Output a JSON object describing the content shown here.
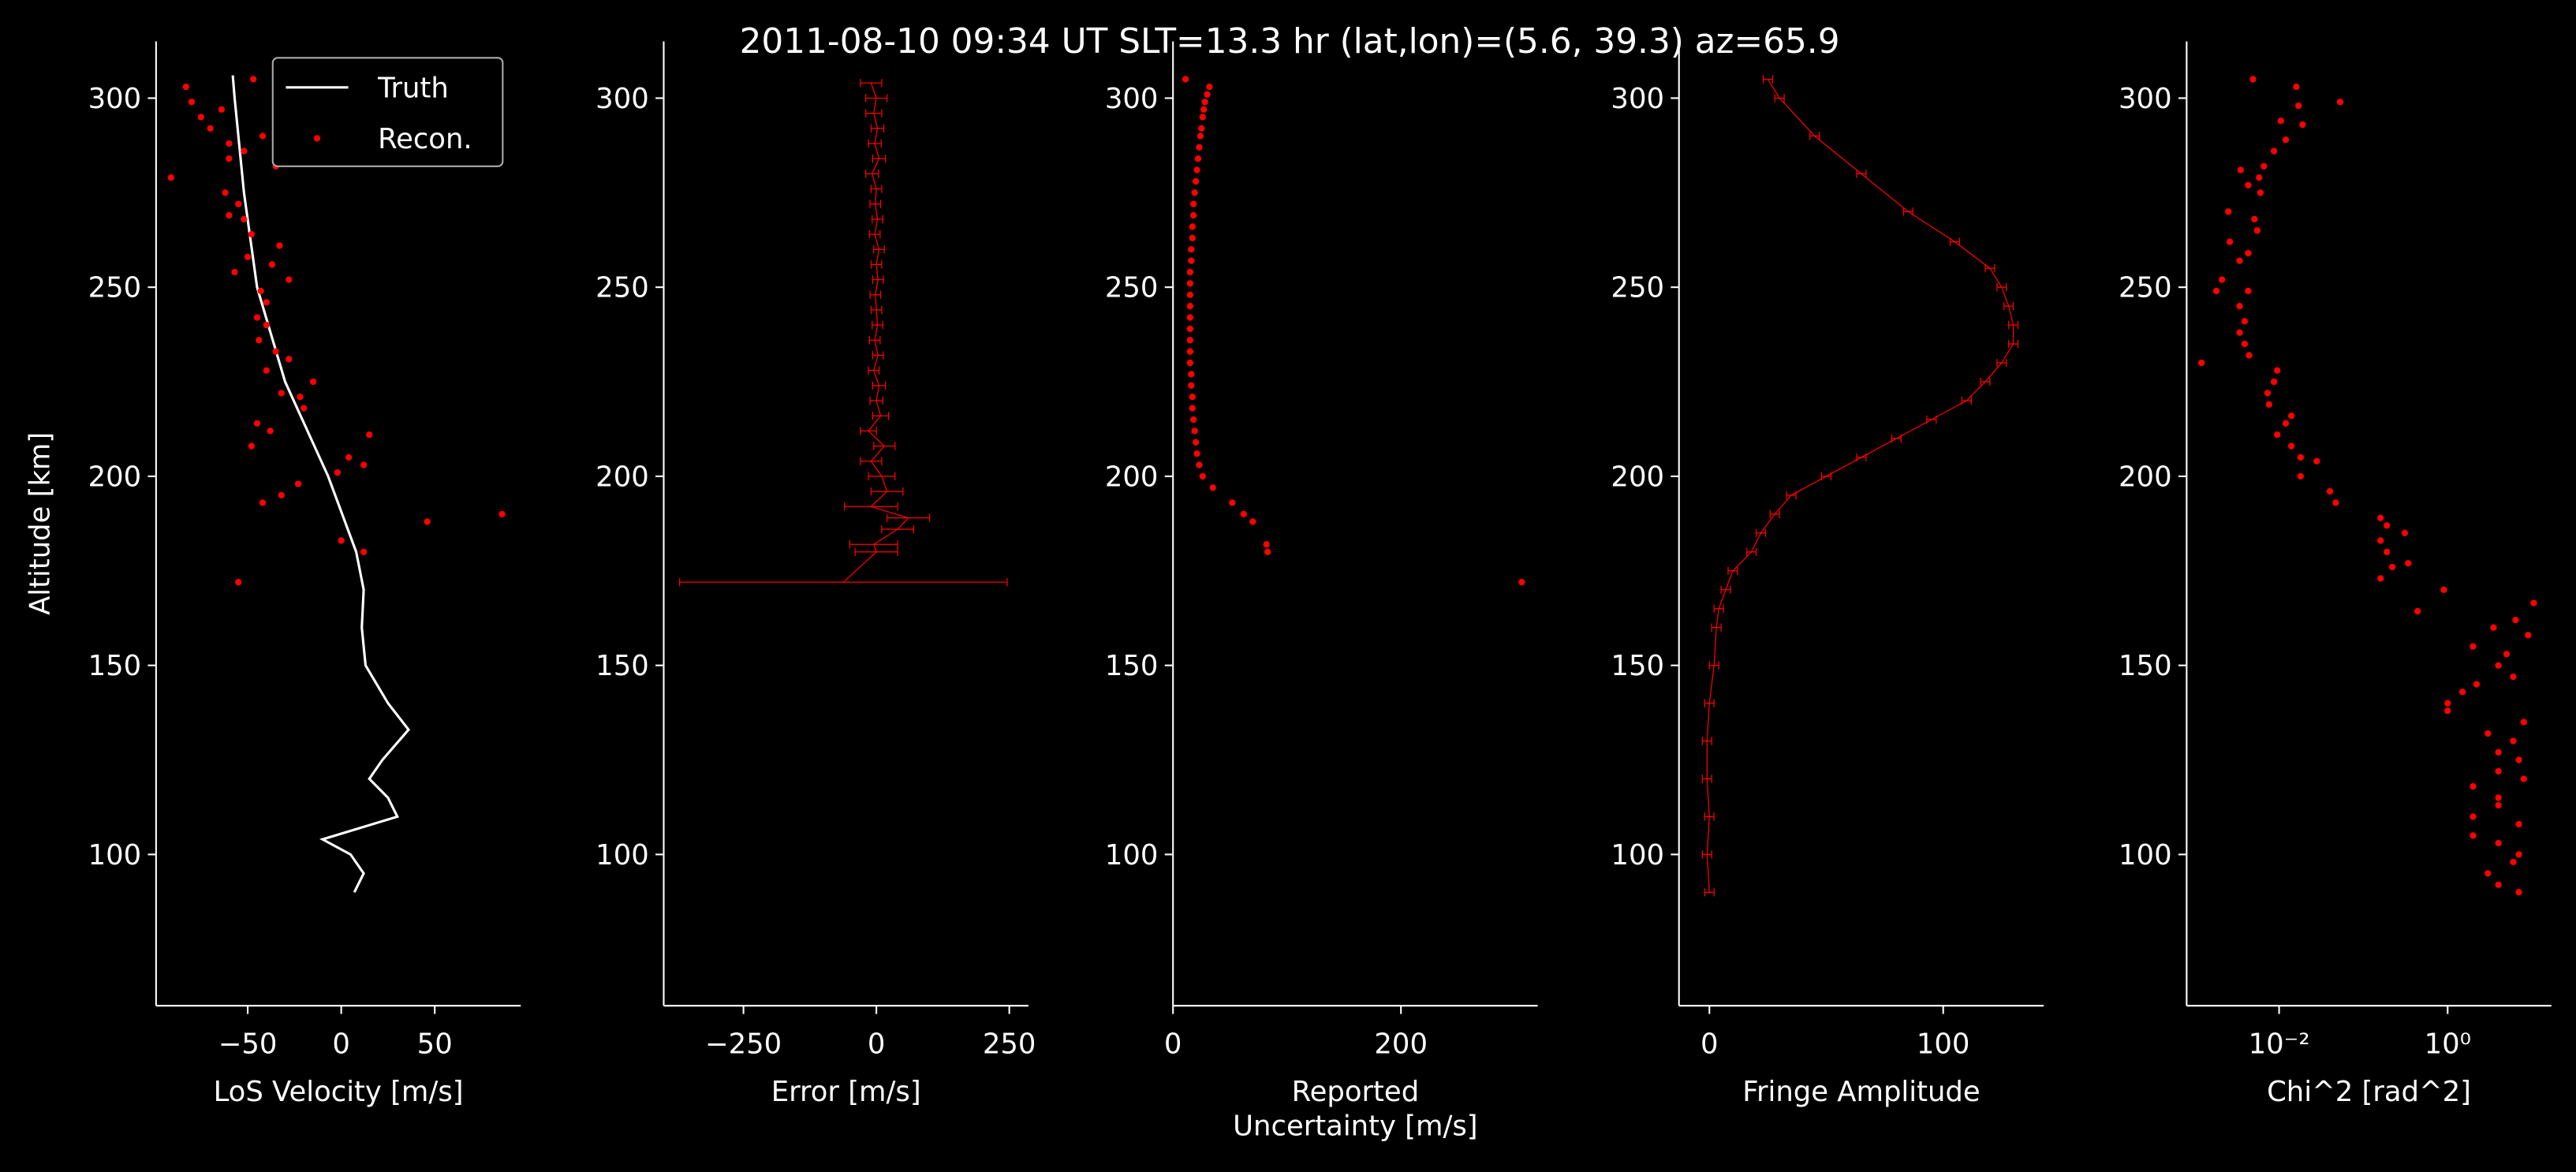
{
  "title": "2011-08-10 09:34 UT     SLT=13.3 hr       (lat,lon)=(5.6, 39.3)       az=65.9",
  "chart_data": [
    {
      "type": "line",
      "ylabel": "Altitude [km]",
      "xlabel": [
        "LoS Velocity [m/s]"
      ],
      "xlim": [
        -99,
        96
      ],
      "ylim": [
        60,
        315
      ],
      "xticks": [
        {
          "value": -50,
          "label": "−50"
        },
        0,
        50
      ],
      "yticks": [
        100,
        150,
        200,
        250,
        300
      ],
      "legend": "upper right",
      "series": [
        {
          "name": "Truth",
          "type": "line",
          "color": "#ffffff",
          "x": [
            -58,
            -57,
            -52,
            -45,
            -30,
            -7,
            8,
            12,
            11,
            13,
            25,
            36,
            22,
            15,
            25,
            30,
            -10,
            5,
            12,
            7
          ],
          "y": [
            306,
            300,
            275,
            250,
            225,
            200,
            180,
            170,
            160,
            150,
            140,
            133,
            125,
            120,
            115,
            110,
            104,
            100,
            95,
            90
          ]
        },
        {
          "name": "Recon.",
          "type": "scatter",
          "color": "#ff0000",
          "x": [
            -83,
            -80,
            -75,
            -70,
            -64,
            -91,
            -47,
            -60,
            -60,
            -52,
            -42,
            -35,
            -62,
            -55,
            -60,
            -52,
            -48,
            -33,
            -50,
            -37,
            -57,
            -28,
            -43,
            -40,
            -45,
            -40,
            -44,
            -35,
            -28,
            -40,
            -15,
            -22,
            -20,
            -32,
            -45,
            -38,
            -48,
            4,
            -2,
            15,
            12,
            -23,
            -32,
            -42,
            46,
            86,
            0,
            12,
            -55
          ],
          "y": [
            303,
            299,
            295,
            292,
            297,
            279,
            305,
            288,
            284,
            286,
            290,
            282,
            275,
            272,
            269,
            268,
            264,
            261,
            258,
            256,
            254,
            252,
            249,
            246,
            242,
            240,
            236,
            233,
            231,
            228,
            225,
            221,
            218,
            222,
            214,
            212,
            208,
            205,
            201,
            211,
            203,
            198,
            195,
            193,
            188,
            190,
            183,
            180,
            172
          ]
        }
      ]
    },
    {
      "type": "errorbar",
      "xlabel": [
        "Error [m/s]"
      ],
      "xlim": [
        -400,
        286
      ],
      "ylim": [
        60,
        315
      ],
      "xticks": [
        {
          "value": -250,
          "label": "−250"
        },
        0,
        250
      ],
      "yticks": [
        100,
        150,
        200,
        250,
        300
      ],
      "series": [
        {
          "color": "#ff0000",
          "x": [
            -62,
            0,
            -5,
            40,
            60,
            -10,
            20,
            10,
            -10,
            15,
            -15,
            8,
            0,
            5,
            -5,
            3,
            -3,
            2,
            0,
            -2,
            3,
            0,
            5,
            -3,
            2,
            -2,
            0,
            -8,
            5,
            -3,
            2,
            -5,
            0,
            -10
          ],
          "xerr": [
            308,
            40,
            45,
            30,
            40,
            50,
            30,
            25,
            20,
            20,
            15,
            15,
            12,
            12,
            10,
            10,
            10,
            10,
            10,
            10,
            10,
            10,
            10,
            10,
            10,
            10,
            10,
            12,
            12,
            12,
            12,
            15,
            20,
            20
          ],
          "y": [
            172,
            180,
            182,
            186,
            189,
            192,
            196,
            200,
            204,
            208,
            212,
            216,
            220,
            224,
            228,
            232,
            236,
            240,
            244,
            248,
            252,
            256,
            260,
            264,
            268,
            272,
            276,
            280,
            284,
            288,
            292,
            296,
            300,
            304
          ]
        }
      ]
    },
    {
      "type": "scatter",
      "xlabel": [
        "Reported",
        "Uncertainty [m/s]"
      ],
      "xlim": [
        0,
        320
      ],
      "ylim": [
        60,
        315
      ],
      "xticks": [
        0,
        200
      ],
      "yticks": [
        100,
        150,
        200,
        250,
        300
      ],
      "series": [
        {
          "color": "#ff0000",
          "x": [
            11,
            32,
            30,
            28,
            27,
            26,
            25,
            24,
            23,
            22,
            21,
            20,
            19,
            18,
            18,
            17,
            17,
            16,
            16,
            15,
            15,
            15,
            15,
            15,
            15,
            15,
            15,
            15,
            16,
            16,
            17,
            17,
            18,
            19,
            20,
            21,
            23,
            26,
            35,
            52,
            62,
            70,
            82,
            83,
            306
          ],
          "y": [
            305,
            303,
            301,
            299,
            297,
            295,
            292,
            290,
            287,
            284,
            281,
            278,
            275,
            272,
            269,
            266,
            263,
            260,
            257,
            254,
            251,
            248,
            245,
            242,
            239,
            236,
            233,
            230,
            227,
            224,
            221,
            218,
            215,
            212,
            209,
            206,
            203,
            200,
            197,
            193,
            190,
            188,
            182,
            180,
            172
          ]
        }
      ]
    },
    {
      "type": "errorbar",
      "xlabel": [
        "Fringe Amplitude"
      ],
      "xlim": [
        -13,
        143
      ],
      "ylim": [
        60,
        315
      ],
      "xticks": [
        0,
        100
      ],
      "yticks": [
        100,
        150,
        200,
        250,
        300
      ],
      "series": [
        {
          "color": "#ff0000",
          "x": [
            25,
            30,
            45,
            65,
            85,
            105,
            120,
            125,
            128,
            130,
            130,
            125,
            118,
            110,
            95,
            80,
            65,
            50,
            35,
            28,
            22,
            18,
            10,
            7,
            4,
            3,
            2,
            0,
            -1,
            -1,
            0,
            -1,
            0
          ],
          "xerr": [
            2,
            2,
            2,
            2,
            2,
            2,
            2,
            2,
            2,
            2,
            2,
            2,
            2,
            2,
            2,
            2,
            2,
            2,
            2,
            2,
            2,
            2,
            2,
            2,
            2,
            2,
            2,
            2,
            2,
            2,
            2,
            2,
            2
          ],
          "y": [
            305,
            300,
            290,
            280,
            270,
            262,
            255,
            250,
            245,
            240,
            235,
            230,
            225,
            220,
            215,
            210,
            205,
            200,
            195,
            190,
            185,
            180,
            175,
            170,
            165,
            160,
            150,
            140,
            130,
            120,
            110,
            100,
            90
          ]
        }
      ]
    },
    {
      "type": "scatter",
      "xlabel": [
        "Chi^2 [rad^2]"
      ],
      "xscale": "log",
      "xlim": [
        0.0008,
        17
      ],
      "ylim": [
        60,
        315
      ],
      "xticks": [
        {
          "value": 0.01,
          "label": "10⁻²"
        },
        {
          "value": 1,
          "label": "10⁰"
        }
      ],
      "yticks": [
        100,
        150,
        200,
        250,
        300
      ],
      "series": [
        {
          "color": "#ff0000",
          "x": [
            0.0049,
            0.016,
            0.017,
            0.053,
            0.019,
            0.0105,
            0.012,
            0.0087,
            0.0066,
            0.0035,
            0.0058,
            0.0043,
            0.006,
            0.0025,
            0.0051,
            0.0055,
            0.0026,
            0.0043,
            0.0034,
            0.0021,
            0.0018,
            0.0043,
            0.0034,
            0.0039,
            0.0034,
            0.0039,
            0.0044,
            0.0012,
            0.0095,
            0.0087,
            0.0073,
            0.0076,
            0.014,
            0.012,
            0.0095,
            0.014,
            0.018,
            0.028,
            0.018,
            0.04,
            0.047,
            0.16,
            0.19,
            0.31,
            0.16,
            0.19,
            0.34,
            0.22,
            0.16,
            0.9,
            10.5,
            0.44,
            6.4,
            3.5,
            9,
            2,
            5,
            4,
            6,
            2.2,
            1.5,
            1,
            1,
            8,
            3,
            6,
            4,
            7,
            4,
            8,
            2,
            4,
            4,
            2,
            7,
            2,
            4,
            7,
            6,
            3,
            4,
            7
          ],
          "y": [
            305,
            303,
            298,
            299,
            293,
            294,
            289,
            286,
            282,
            281,
            279,
            277,
            275,
            270,
            268,
            265,
            262,
            259,
            257,
            252,
            249,
            249,
            245,
            241,
            238,
            235,
            232,
            230,
            228,
            225,
            222,
            219,
            216,
            214,
            211,
            208,
            205,
            204,
            200,
            196,
            193,
            189,
            187,
            185,
            183,
            180,
            177,
            176,
            173,
            170,
            166.5,
            164.3,
            162,
            160,
            158,
            155,
            153,
            150,
            147,
            145,
            143,
            140,
            138,
            135,
            132,
            130,
            127,
            125,
            122,
            120,
            118,
            115,
            113,
            110,
            108,
            105,
            103,
            100,
            98,
            95,
            92,
            90
          ]
        }
      ]
    }
  ]
}
